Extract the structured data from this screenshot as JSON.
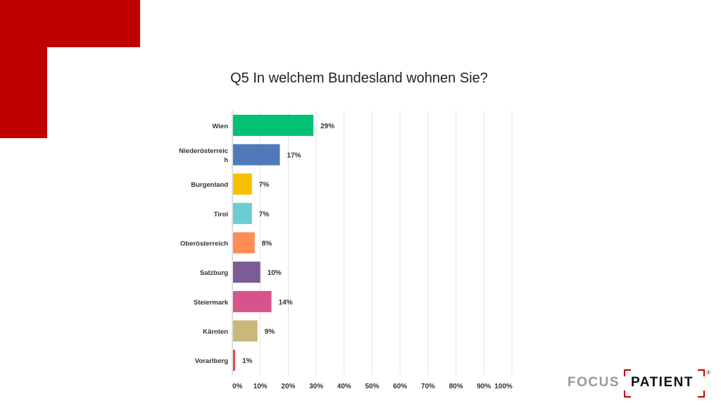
{
  "title": "Q5 In welchem Bundesland wohnen Sie?",
  "logo": {
    "part1": "FOCUS",
    "part2": "PATIENT",
    "registered": "®"
  },
  "chart_data": {
    "type": "bar",
    "orientation": "horizontal",
    "title": "Q5 In welchem Bundesland wohnen Sie?",
    "categories": [
      "Wien",
      "Niederösterreich",
      "Burgenland",
      "Tirol",
      "Oberösterreich",
      "Salzburg",
      "Steiermark",
      "Kärnten",
      "Vorarlberg"
    ],
    "category_label_lines": [
      [
        "Wien"
      ],
      [
        "Niederösterreic",
        "h"
      ],
      [
        "Burgenland"
      ],
      [
        "Tirol"
      ],
      [
        "Oberösterreich"
      ],
      [
        "Salzburg"
      ],
      [
        "Steiermark"
      ],
      [
        "Kärnten"
      ],
      [
        "Vorarlberg"
      ]
    ],
    "values": [
      29,
      17,
      7,
      7,
      8,
      10,
      14,
      9,
      1
    ],
    "value_labels": [
      "29%",
      "17%",
      "7%",
      "7%",
      "8%",
      "10%",
      "14%",
      "9%",
      "1%"
    ],
    "colors": [
      "#00c176",
      "#4f7ab9",
      "#f7c000",
      "#6ccdd1",
      "#ff8c55",
      "#7b5c95",
      "#d6548a",
      "#c9b87c",
      "#d94f4f"
    ],
    "xlim": [
      0,
      100
    ],
    "ticks": [
      "0%",
      "10%",
      "20%",
      "30%",
      "40%",
      "50%",
      "60%",
      "70%",
      "80%",
      "90%",
      "100%"
    ],
    "grid": true,
    "xlabel": "",
    "ylabel": ""
  }
}
